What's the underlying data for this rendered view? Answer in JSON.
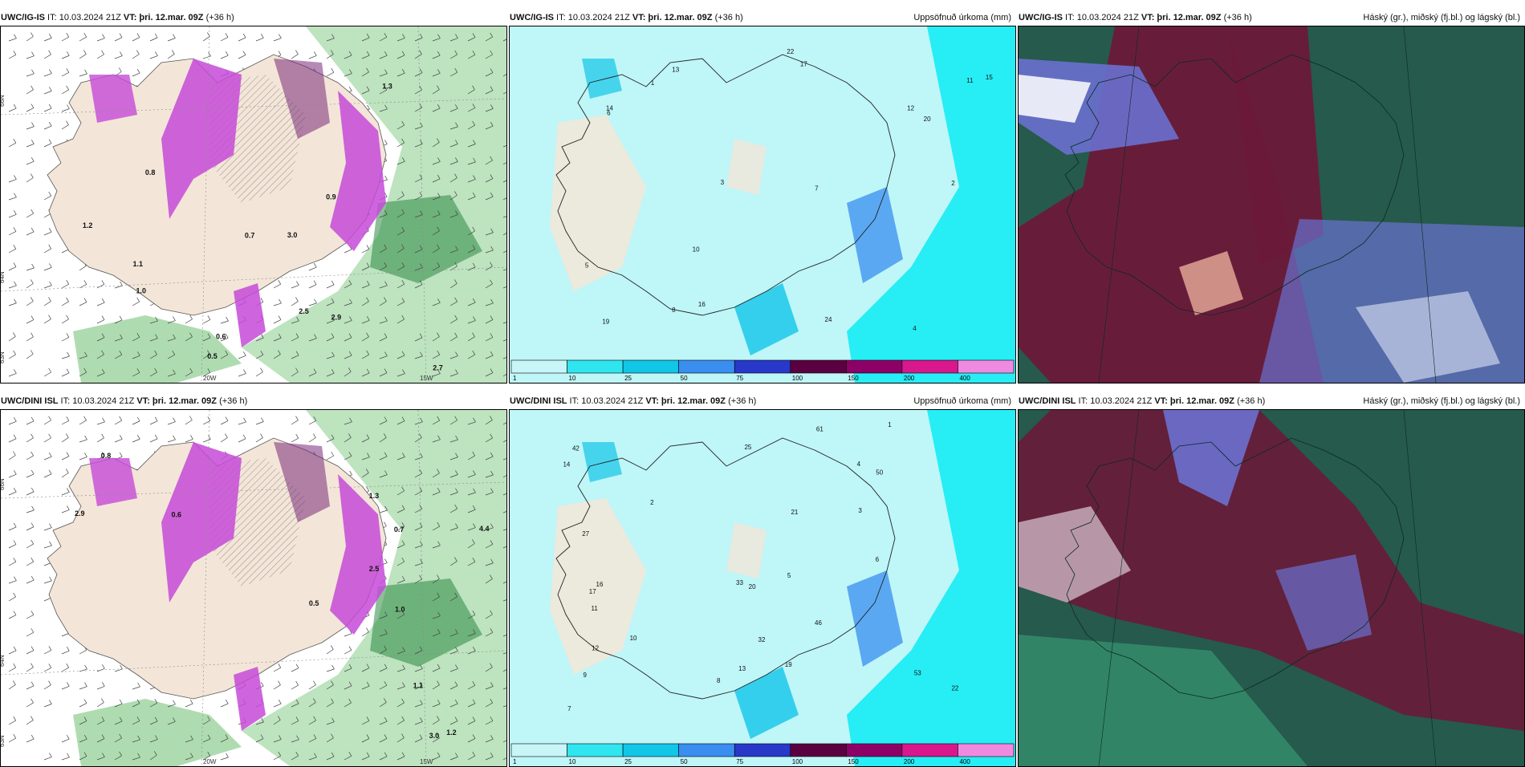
{
  "rows": [
    {
      "model": "UWC/IG-IS",
      "init": "IT: 10.03.2024 21Z",
      "valid": "VT: þri. 12.mar. 09Z",
      "lead": "(+36 h)",
      "panels": [
        {
          "right_title": "",
          "lat_labels": [
            "66N",
            "64N",
            "63N"
          ],
          "lon_labels": [
            "20W",
            "15W"
          ],
          "values": [
            "0.5",
            "0.6",
            "0.7",
            "2.5",
            "1.0",
            "3.0",
            "2.7",
            "0.8",
            "0.9",
            "2.9",
            "1.3",
            "1.2",
            "1.1"
          ]
        },
        {
          "right_title": "Uppsöfnuð úrkoma (mm)",
          "values": [
            "1",
            "2",
            "3",
            "4",
            "5",
            "6",
            "7",
            "8",
            "10",
            "11",
            "12",
            "13",
            "14",
            "15",
            "16",
            "17",
            "19",
            "20",
            "22",
            "24"
          ]
        },
        {
          "right_title": "Háský (gr.), miðský (fj.bl.) og lágský (bl.)"
        }
      ]
    },
    {
      "model": "UWC/DINI ISL",
      "init": "IT: 10.03.2024 21Z",
      "valid": "VT: þri. 12.mar. 09Z",
      "lead": "(+36 h)",
      "panels": [
        {
          "right_title": "",
          "lat_labels": [
            "66N",
            "64N",
            "63N"
          ],
          "lon_labels": [
            "20W",
            "15W"
          ],
          "values": [
            "0.5",
            "0.6",
            "0.7",
            "0.8",
            "1.0",
            "1.3",
            "2.9",
            "3.0",
            "4.4",
            "2.5",
            "1.1",
            "1.2"
          ]
        },
        {
          "right_title": "Uppsöfnuð úrkoma (mm)",
          "values": [
            "1",
            "2",
            "3",
            "4",
            "5",
            "6",
            "7",
            "8",
            "9",
            "10",
            "11",
            "12",
            "13",
            "14",
            "16",
            "17",
            "19",
            "20",
            "21",
            "22",
            "25",
            "27",
            "32",
            "33",
            "42",
            "46",
            "50",
            "53",
            "61"
          ]
        },
        {
          "right_title": "Háský (gr.), miðský (fj.bl.) og lágský (bl.)"
        }
      ]
    }
  ],
  "colorbar": {
    "ticks": [
      "1",
      "10",
      "25",
      "50",
      "75",
      "100",
      "150",
      "200",
      "400"
    ],
    "colors": [
      "#c8f5f8",
      "#2fe6f0",
      "#12c6e8",
      "#3a8ef0",
      "#2838c8",
      "#5a0040",
      "#8c0068",
      "#d8188c",
      "#f08ae0"
    ]
  },
  "palette": {
    "land": "#f3e6d8",
    "precip_light": "#bff6f8",
    "precip_mid": "#16ecf4",
    "green_shade": "#6cc070",
    "magenta_shade": "#c64ad8",
    "cloud_high": "#6a1a38",
    "cloud_mid": "#6a70d0",
    "cloud_low": "#265a4c"
  }
}
